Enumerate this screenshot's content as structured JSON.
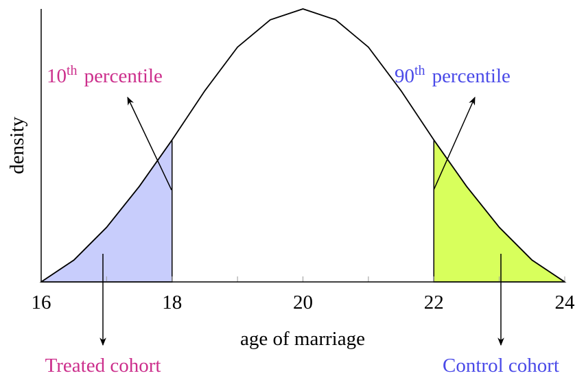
{
  "chart_data": {
    "type": "line",
    "x": [
      16,
      16.5,
      17,
      17.5,
      18,
      18.5,
      19,
      19.5,
      20,
      20.5,
      21,
      21.5,
      22,
      22.5,
      23,
      23.5,
      24
    ],
    "values": [
      0,
      0.08,
      0.2,
      0.35,
      0.52,
      0.7,
      0.86,
      0.96,
      1,
      0.96,
      0.86,
      0.7,
      0.52,
      0.35,
      0.2,
      0.08,
      0
    ],
    "color": "#000000",
    "xlim": [
      16,
      24
    ],
    "ylim": [
      0,
      1
    ],
    "xticks": [
      16,
      18,
      20,
      22,
      24
    ],
    "xminorticks": [
      17,
      19,
      21,
      23
    ],
    "xlabel": "age of marriage",
    "ylabel": "density",
    "shaded": [
      {
        "from": 16,
        "to": 18,
        "color": "#c8cdfc"
      },
      {
        "from": 22,
        "to": 24,
        "color": "#d8ff5c"
      }
    ],
    "annotations": [
      {
        "number": "10",
        "suffix": "th",
        "text": "percentile",
        "color": "#cc2f8c"
      },
      {
        "number": "90",
        "suffix": "th",
        "text": "percentile",
        "color": "#4a4ae8"
      },
      {
        "text": "Treated cohort",
        "color": "#cc2f8c"
      },
      {
        "text": "Control cohort",
        "color": "#4a4ae8"
      }
    ]
  }
}
